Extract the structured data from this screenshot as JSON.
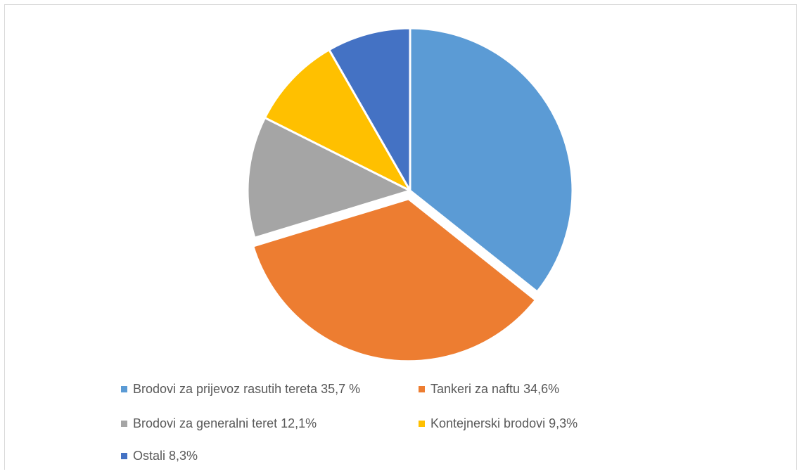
{
  "chart_data": {
    "type": "pie",
    "title": "",
    "series": [
      {
        "values": [
          35.7,
          34.6,
          12.1,
          9.3,
          8.3
        ],
        "colors": [
          "#5b9bd5",
          "#ed7d31",
          "#a5a5a5",
          "#ffc000",
          "#4472c4"
        ]
      }
    ],
    "categories": [
      "Brodovi za prijevoz rasutih tereta 35,7 %",
      "Tankeri za naftu 34,6%",
      "Brodovi za generalni teret 12,1%",
      "Kontejnerski brodovi 9,3%",
      "Ostali 8,3%"
    ],
    "exploded_slice": "Tankeri za naftu 34,6%",
    "legend_position": "bottom"
  },
  "legend": {
    "items": [
      {
        "label": "Brodovi za prijevoz rasutih tereta 35,7 %",
        "color": "#5b9bd5"
      },
      {
        "label": "Tankeri za naftu 34,6%",
        "color": "#ed7d31"
      },
      {
        "label": "Brodovi za generalni teret 12,1%",
        "color": "#a5a5a5"
      },
      {
        "label": "Kontejnerski brodovi 9,3%",
        "color": "#ffc000"
      },
      {
        "label": "Ostali 8,3%",
        "color": "#4472c4"
      }
    ]
  }
}
